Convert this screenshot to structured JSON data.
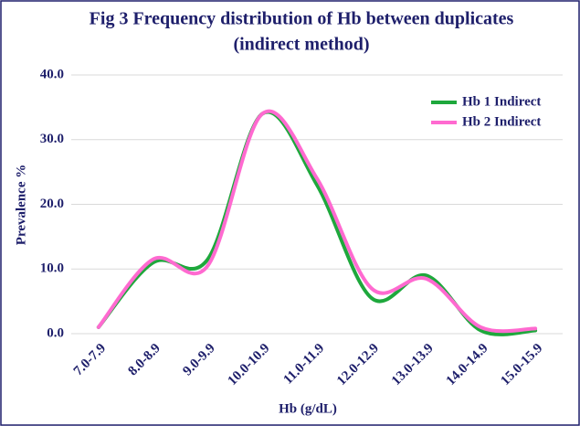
{
  "chart_data": {
    "type": "line",
    "title": [
      "Fig 3 Frequency distribution  of Hb between duplicates",
      "(indirect method)"
    ],
    "x_label": "Hb  (g/dL)",
    "y_label": "Prevalence  %",
    "categories": [
      "7.0-7.9",
      "8.0-8.9",
      "9.0-9.9",
      "10.0-10.9",
      "11.0-11.9",
      "12.0-12.9",
      "13.0-13.9",
      "14.0-14.9",
      "15.0-15.9"
    ],
    "series": [
      {
        "name": "Hb 1 Indirect",
        "color": "#1ea83c",
        "values": [
          1,
          11,
          11.5,
          34,
          23,
          5.5,
          9,
          0.5,
          0.5
        ]
      },
      {
        "name": "Hb 2 Indirect",
        "color": "#ff6ad0",
        "values": [
          1,
          11.5,
          10.5,
          34,
          24,
          7,
          8.5,
          1,
          0.8
        ]
      }
    ],
    "ylim": [
      0,
      40
    ],
    "yticks": [
      {
        "value": 0,
        "label": "0.0"
      },
      {
        "value": 10,
        "label": "10.0"
      },
      {
        "value": 20,
        "label": "20.0"
      },
      {
        "value": 30,
        "label": "30.0"
      },
      {
        "value": 40,
        "label": "40.0"
      }
    ],
    "grid": true,
    "smooth": true,
    "legend": "top-right"
  }
}
